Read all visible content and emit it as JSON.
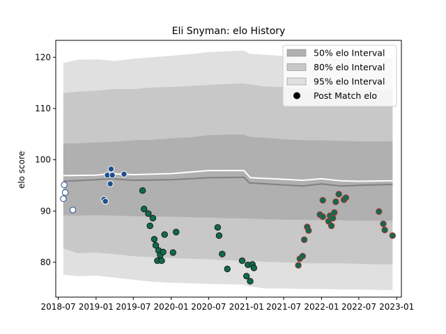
{
  "chart_data": {
    "type": "area",
    "title": "Eli Snyman: elo History",
    "xlabel": "",
    "ylabel": "elo score",
    "xlim": [
      "2018-06-19",
      "2023-01-24"
    ],
    "ylim": [
      73.2,
      123.3
    ],
    "x_ticks": [
      "2018-07-01",
      "2019-01-01",
      "2019-07-01",
      "2020-01-01",
      "2020-07-01",
      "2021-01-01",
      "2021-07-01",
      "2022-01-01",
      "2022-07-01",
      "2023-01-01"
    ],
    "x_tick_labels": [
      "2018-07",
      "2019-01",
      "2019-07",
      "2020-01",
      "2020-07",
      "2021-01",
      "2021-07",
      "2022-01",
      "2022-07",
      "2023-01"
    ],
    "y_ticks": [
      80,
      90,
      100,
      110,
      120
    ],
    "grid": false,
    "legend_position": "top-right",
    "legend": [
      {
        "label": "50% elo Interval",
        "kind": "patch",
        "color": "#b0b0b0"
      },
      {
        "label": "80% elo Interval",
        "kind": "patch",
        "color": "#c8c8c8"
      },
      {
        "label": "95% elo Interval",
        "kind": "patch",
        "color": "#e0e0e0"
      },
      {
        "label": "Post Match elo",
        "kind": "marker",
        "color": "#000000"
      }
    ],
    "band_x": [
      "2018-07-26",
      "2018-10-01",
      "2019-01-01",
      "2019-04-01",
      "2019-07-01",
      "2019-10-01",
      "2020-01-01",
      "2020-04-01",
      "2020-07-01",
      "2020-10-01",
      "2020-12-20",
      "2021-01-15",
      "2021-04-01",
      "2021-07-01",
      "2021-10-01",
      "2022-01-01",
      "2022-04-01",
      "2022-07-01",
      "2022-10-01",
      "2022-12-12"
    ],
    "bands": [
      {
        "name": "95% elo Interval",
        "color": "#e0e0e0",
        "upper": [
          118.9,
          119.5,
          119.6,
          119.3,
          119.7,
          120.0,
          120.3,
          120.6,
          121.0,
          121.2,
          121.3,
          120.7,
          120.5,
          120.2,
          119.9,
          119.9,
          119.8,
          119.8,
          119.8,
          119.8
        ],
        "lower": [
          77.6,
          77.3,
          77.4,
          77.0,
          76.6,
          76.2,
          76.0,
          75.9,
          75.8,
          75.7,
          75.6,
          75.3,
          74.9,
          74.9,
          74.8,
          74.8,
          74.7,
          74.7,
          74.6,
          74.6
        ]
      },
      {
        "name": "80% elo Interval",
        "color": "#c8c8c8",
        "upper": [
          113.0,
          113.3,
          113.5,
          113.8,
          113.8,
          114.1,
          114.2,
          114.4,
          114.6,
          114.8,
          114.9,
          114.7,
          114.3,
          114.2,
          113.9,
          113.8,
          113.8,
          113.7,
          113.6,
          113.6
        ],
        "lower": [
          82.7,
          81.8,
          81.9,
          81.6,
          81.2,
          81.0,
          80.8,
          80.7,
          80.6,
          80.4,
          80.3,
          80.3,
          80.1,
          80.0,
          79.8,
          79.8,
          79.8,
          79.7,
          79.6,
          79.6
        ]
      },
      {
        "name": "50% elo Interval",
        "color": "#b0b0b0",
        "upper": [
          103.2,
          103.2,
          103.4,
          103.5,
          103.8,
          103.9,
          104.2,
          104.4,
          104.8,
          104.9,
          104.9,
          104.5,
          104.3,
          104.0,
          103.8,
          103.8,
          103.7,
          103.6,
          103.6,
          103.6
        ],
        "lower": [
          89.2,
          89.1,
          89.2,
          89.1,
          89.0,
          88.9,
          88.9,
          88.8,
          88.7,
          88.6,
          88.6,
          88.5,
          88.4,
          88.3,
          88.3,
          88.2,
          88.2,
          88.1,
          88.1,
          88.1
        ]
      }
    ],
    "lines": [
      {
        "name": "mean",
        "color": "#ffffff",
        "x": [
          "2018-07-26",
          "2019-01-01",
          "2019-03-10",
          "2019-07-01",
          "2020-01-01",
          "2020-07-01",
          "2020-12-20",
          "2021-01-20",
          "2021-07-01",
          "2021-10-01",
          "2022-01-01",
          "2022-04-01",
          "2022-07-01",
          "2022-12-12"
        ],
        "y": [
          96.9,
          97.0,
          97.3,
          97.1,
          97.3,
          97.9,
          97.9,
          96.5,
          96.2,
          96.0,
          96.3,
          95.9,
          95.8,
          95.9
        ]
      },
      {
        "name": "median",
        "color": "#808080",
        "x": [
          "2018-07-26",
          "2019-01-01",
          "2019-03-10",
          "2019-07-01",
          "2020-01-01",
          "2020-07-01",
          "2020-12-20",
          "2021-01-15",
          "2021-07-01",
          "2021-10-01",
          "2022-01-01",
          "2022-04-01",
          "2022-07-01",
          "2022-12-12"
        ],
        "y": [
          95.8,
          96.1,
          96.3,
          96.0,
          96.1,
          96.5,
          96.6,
          95.5,
          95.1,
          94.9,
          95.3,
          94.9,
          95.0,
          95.2
        ]
      }
    ],
    "series": [
      {
        "fill": "#ffffff",
        "edge": "#1f4e8c",
        "points": [
          {
            "x": "2018-07-26",
            "y": 92.4
          },
          {
            "x": "2018-07-30",
            "y": 95.1
          },
          {
            "x": "2018-08-04",
            "y": 93.6
          },
          {
            "x": "2018-09-10",
            "y": 90.2
          }
        ]
      },
      {
        "fill": "#1f4e8c",
        "edge": "#ffffff",
        "points": [
          {
            "x": "2019-02-08",
            "y": 92.3
          },
          {
            "x": "2019-02-15",
            "y": 91.9
          },
          {
            "x": "2019-02-25",
            "y": 97.0
          },
          {
            "x": "2019-03-11",
            "y": 95.3
          },
          {
            "x": "2019-03-15",
            "y": 98.2
          },
          {
            "x": "2019-03-21",
            "y": 97.0
          },
          {
            "x": "2019-05-17",
            "y": 97.2
          }
        ]
      },
      {
        "fill": "#0e6b4e",
        "edge": "#1a1a1a",
        "points": [
          {
            "x": "2019-08-15",
            "y": 94.0
          },
          {
            "x": "2019-08-22",
            "y": 90.4
          },
          {
            "x": "2019-09-20",
            "y": 87.1
          },
          {
            "x": "2019-09-12",
            "y": 89.5
          },
          {
            "x": "2019-10-04",
            "y": 88.6
          },
          {
            "x": "2019-10-11",
            "y": 84.5
          },
          {
            "x": "2019-10-18",
            "y": 83.3
          },
          {
            "x": "2019-10-26",
            "y": 80.3
          },
          {
            "x": "2019-11-01",
            "y": 82.3
          },
          {
            "x": "2019-11-09",
            "y": 81.4
          },
          {
            "x": "2019-11-16",
            "y": 80.3
          },
          {
            "x": "2019-11-23",
            "y": 82.0
          },
          {
            "x": "2019-11-30",
            "y": 85.4
          },
          {
            "x": "2020-01-10",
            "y": 81.9
          },
          {
            "x": "2020-01-25",
            "y": 85.9
          },
          {
            "x": "2020-08-14",
            "y": 86.8
          },
          {
            "x": "2020-08-21",
            "y": 85.2
          },
          {
            "x": "2020-09-05",
            "y": 81.6
          },
          {
            "x": "2020-09-30",
            "y": 78.7
          },
          {
            "x": "2020-12-11",
            "y": 80.3
          },
          {
            "x": "2021-01-01",
            "y": 77.3
          },
          {
            "x": "2021-01-08",
            "y": 79.5
          },
          {
            "x": "2021-01-19",
            "y": 76.3
          },
          {
            "x": "2021-01-30",
            "y": 79.6
          },
          {
            "x": "2021-02-06",
            "y": 78.9
          }
        ]
      },
      {
        "fill": "#0e6b4e",
        "edge": "#b03030",
        "points": [
          {
            "x": "2021-09-10",
            "y": 79.4
          },
          {
            "x": "2021-09-17",
            "y": 80.7
          },
          {
            "x": "2021-10-01",
            "y": 81.2
          },
          {
            "x": "2021-10-09",
            "y": 84.4
          },
          {
            "x": "2021-10-23",
            "y": 86.9
          },
          {
            "x": "2021-10-30",
            "y": 86.2
          },
          {
            "x": "2021-12-24",
            "y": 89.3
          },
          {
            "x": "2022-01-07",
            "y": 92.1
          },
          {
            "x": "2022-01-07",
            "y": 88.9
          },
          {
            "x": "2022-02-04",
            "y": 88.0
          },
          {
            "x": "2022-02-11",
            "y": 89.1
          },
          {
            "x": "2022-02-18",
            "y": 87.1
          },
          {
            "x": "2022-02-25",
            "y": 88.6
          },
          {
            "x": "2022-03-04",
            "y": 89.7
          },
          {
            "x": "2022-03-11",
            "y": 91.8
          },
          {
            "x": "2022-03-26",
            "y": 93.3
          },
          {
            "x": "2022-04-20",
            "y": 92.2
          },
          {
            "x": "2022-04-29",
            "y": 92.6
          },
          {
            "x": "2022-10-07",
            "y": 89.9
          },
          {
            "x": "2022-10-28",
            "y": 87.5
          },
          {
            "x": "2022-11-04",
            "y": 86.3
          },
          {
            "x": "2022-12-12",
            "y": 85.2
          }
        ]
      }
    ]
  }
}
